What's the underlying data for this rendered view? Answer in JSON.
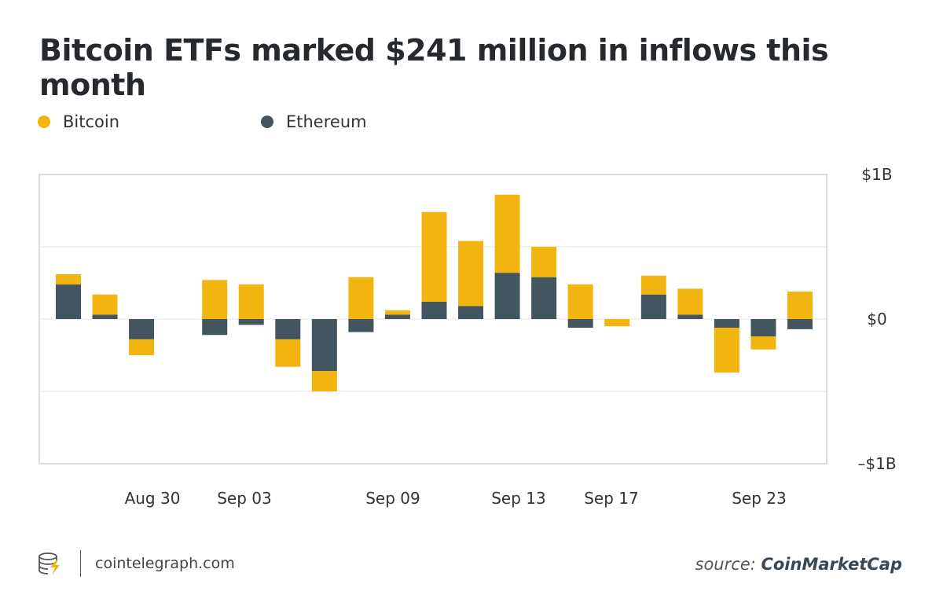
{
  "chart_data": {
    "type": "bar",
    "stacked": true,
    "title": "Bitcoin ETFs marked $241 million in inflows this month",
    "series": [
      {
        "name": "Bitcoin",
        "color": "#f2b50f",
        "values": [
          0.07,
          0.14,
          -0.11,
          0,
          0.27,
          0.24,
          -0.19,
          -0.14,
          0.29,
          0.03,
          0.62,
          0.45,
          0.54,
          0.21,
          0.24,
          -0.05,
          0.13,
          0.18,
          -0.31,
          -0.09,
          0.19
        ]
      },
      {
        "name": "Ethereum",
        "color": "#43555f",
        "values": [
          0.24,
          0.03,
          -0.14,
          0,
          -0.11,
          -0.04,
          -0.14,
          -0.36,
          -0.09,
          0.03,
          0.12,
          0.09,
          0.32,
          0.29,
          -0.06,
          0,
          0.17,
          0.03,
          -0.06,
          -0.12,
          -0.07
        ]
      }
    ],
    "x_ticks": [
      "Aug 30",
      "Sep 03",
      "Sep 09",
      "Sep 13",
      "Sep 17",
      "Sep 23"
    ],
    "y_ticks": [
      "$1B",
      "$0",
      "–$1B"
    ],
    "ylim": [
      -1,
      1
    ],
    "y_unit": "billion USD",
    "grid": true,
    "legend_position": "top-left",
    "xlabel": "",
    "ylabel": ""
  },
  "legend": {
    "bitcoin": "Bitcoin",
    "ethereum": "Ethereum"
  },
  "footer": {
    "site": "cointelegraph.com",
    "source_prefix": "source:",
    "source_name": "CoinMarketCap"
  }
}
